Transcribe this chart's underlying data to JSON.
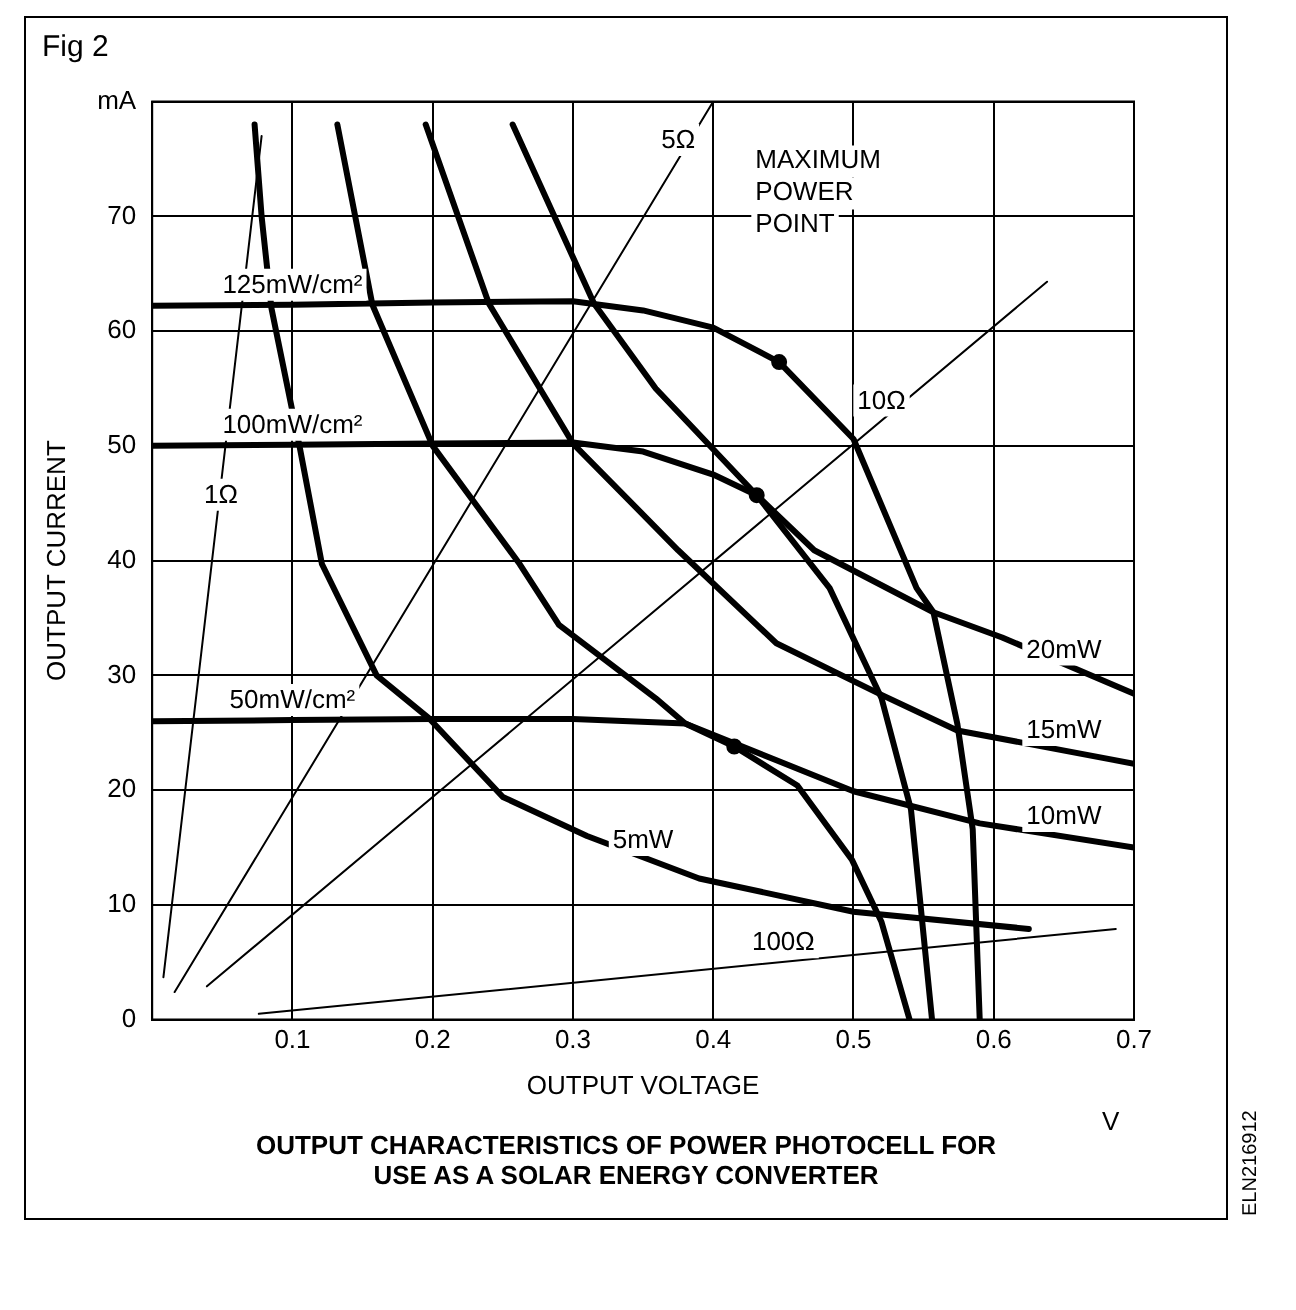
{
  "chart_data": {
    "type": "line",
    "title": "Fig 2",
    "xlabel": "OUTPUT VOLTAGE",
    "ylabel": "OUTPUT CURRENT",
    "xlim": [
      0,
      0.7
    ],
    "ylim": [
      0,
      80
    ],
    "xticks": [
      {
        "value": 0,
        "label": null
      },
      0.1,
      0.2,
      0.3,
      0.4,
      0.5,
      0.6,
      0.7
    ],
    "yticks": [
      0,
      10,
      20,
      30,
      40,
      50,
      60,
      70,
      {
        "value": 80,
        "label": "mA"
      }
    ],
    "grid": true,
    "legend": false,
    "marker": "none",
    "series": [
      {
        "color": "#000000",
        "x": [
          0,
          0.1,
          0.2,
          0.3,
          0.35,
          0.4,
          0.447,
          0.5,
          0.545,
          0.557,
          0.574,
          0.585,
          0.59
        ],
        "values": [
          62.2,
          62.3,
          62.5,
          62.6,
          61.8,
          60.3,
          57.3,
          50.6,
          37.6,
          35.5,
          25.8,
          16.6,
          0
        ]
      },
      {
        "color": "#000000",
        "x": [
          0,
          0.1,
          0.2,
          0.3,
          0.35,
          0.4,
          0.431,
          0.483,
          0.52,
          0.541,
          0.556
        ],
        "values": [
          50,
          50.1,
          50.2,
          50.3,
          49.5,
          47.5,
          45.7,
          37.6,
          28,
          18.3,
          0
        ]
      },
      {
        "color": "#000000",
        "x": [
          0,
          0.1,
          0.2,
          0.3,
          0.38,
          0.415,
          0.46,
          0.499,
          0.52,
          0.54
        ],
        "values": [
          26,
          26.1,
          26.2,
          26.2,
          25.8,
          23.8,
          20.4,
          13.9,
          8.5,
          0
        ]
      },
      {
        "color": "#000000",
        "x": [
          0.073,
          0.078,
          0.085,
          0.105,
          0.121,
          0.16,
          0.197,
          0.25,
          0.31,
          0.39,
          0.5,
          0.625
        ],
        "values": [
          78,
          70,
          62,
          50,
          39.7,
          30,
          26.3,
          19.4,
          16,
          12.3,
          9.4,
          7.9
        ]
      },
      {
        "color": "#000000",
        "x": [
          0.132,
          0.157,
          0.2,
          0.262,
          0.29,
          0.359,
          0.38,
          0.5,
          0.59,
          0.7
        ],
        "values": [
          78,
          62.3,
          50,
          39.7,
          34.4,
          28,
          25.8,
          19.9,
          17.1,
          15
        ]
      },
      {
        "color": "#000000",
        "x": [
          0.195,
          0.24,
          0.3,
          0.375,
          0.445,
          0.52,
          0.574,
          0.7
        ],
        "values": [
          78,
          62.4,
          50.2,
          40.9,
          32.8,
          28.3,
          25.2,
          22.3
        ]
      },
      {
        "color": "#000000",
        "x": [
          0.257,
          0.315,
          0.359,
          0.431,
          0.472,
          0.557,
          0.606,
          0.7
        ],
        "values": [
          78,
          62.4,
          55,
          45.7,
          40.9,
          35.5,
          33.3,
          28.4
        ]
      },
      {
        "color": "#000000",
        "x": [
          0.008,
          0.078
        ],
        "values": [
          3.7,
          77
        ]
      },
      {
        "color": "#000000",
        "x": [
          0.016,
          0.4
        ],
        "values": [
          2.4,
          80
        ]
      },
      {
        "color": "#000000",
        "x": [
          0.039,
          0.638
        ],
        "values": [
          2.9,
          64.3
        ]
      },
      {
        "color": "#000000",
        "x": [
          0.076,
          0.687
        ],
        "values": [
          0.5,
          7.9
        ]
      },
      {
        "type": "scatter",
        "marker": "circle",
        "color": "#000000",
        "x": [
          0.447,
          0.431,
          0.415
        ],
        "values": [
          57.3,
          45.7,
          23.8
        ]
      }
    ],
    "annotations": [
      "MAXIMUM POWER POINT",
      "V",
      "OUTPUT CHARACTERISTICS OF POWER PHOTOCELL FOR USE AS A SOLAR ENERGY CONVERTER",
      "ELN216912",
      {
        "text": "125mW/cm²",
        "x": 0.1,
        "y": 62.3
      },
      {
        "text": "100mW/cm²",
        "x": 0.1,
        "y": 50.1
      },
      {
        "text": "50mW/cm²",
        "x": 0.1,
        "y": 26.1
      },
      {
        "text": "5mW",
        "x": 0.35,
        "y": 13.9
      },
      {
        "text": "10mW",
        "x": 0.65,
        "y": 16
      },
      {
        "text": "15mW",
        "x": 0.65,
        "y": 23.5
      },
      {
        "text": "20mW",
        "x": 0.65,
        "y": 30.5
      },
      {
        "text": "1Ω",
        "x": 0.049,
        "y": 44
      },
      {
        "text": "5Ω",
        "x": 0.375,
        "y": 74.9
      },
      {
        "text": "10Ω",
        "x": 0.52,
        "y": 52.2
      },
      {
        "text": "100Ω",
        "x": 0.45,
        "y": 5
      }
    ]
  }
}
